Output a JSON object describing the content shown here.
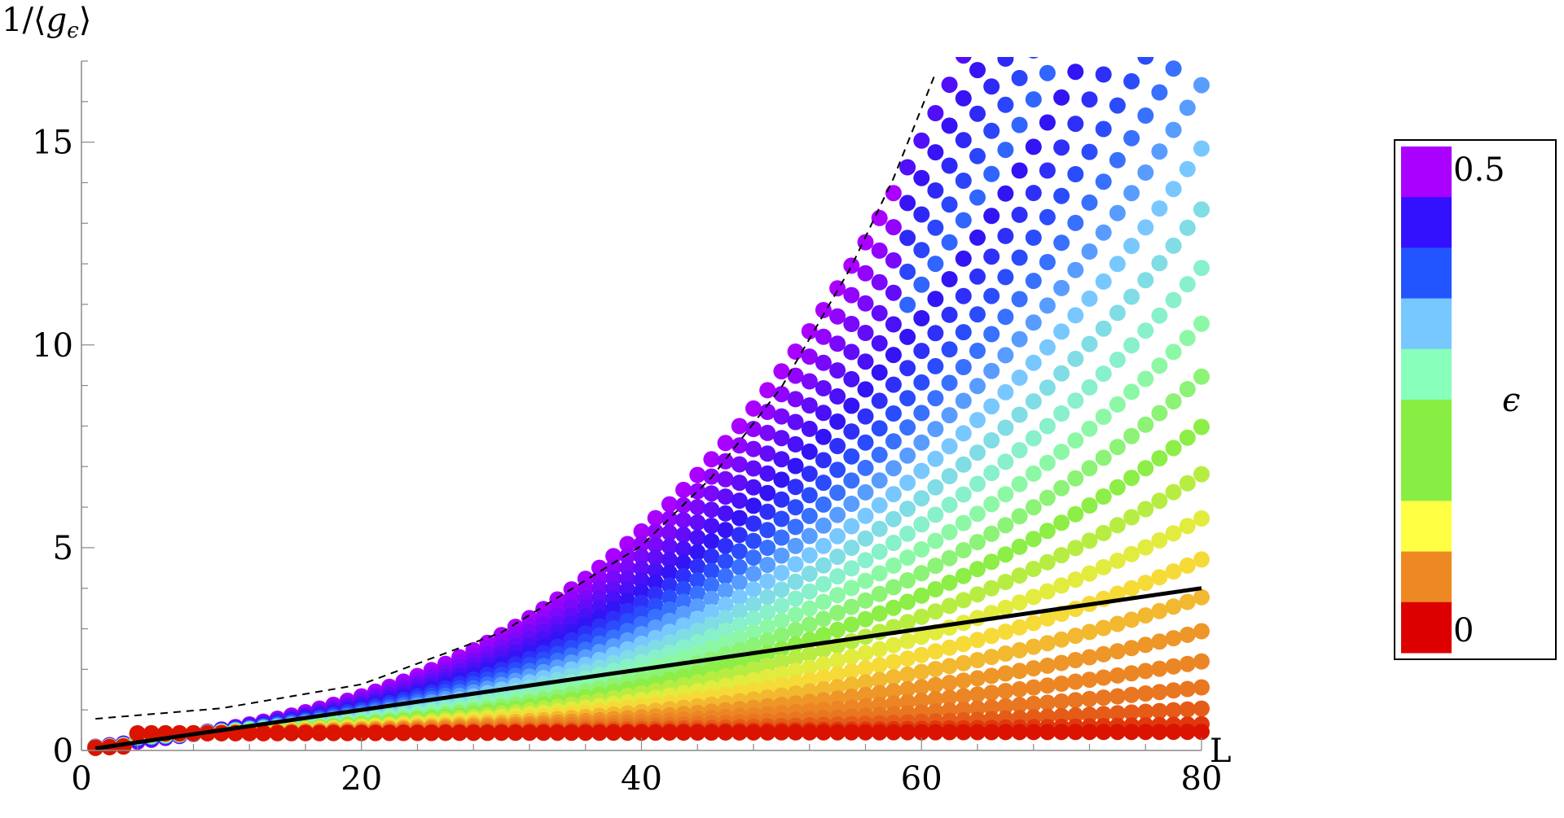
{
  "chart_data": {
    "type": "scatter",
    "title": "",
    "xlabel": "L",
    "ylabel": "1/⟨g_ϵ⟩",
    "ylabel_main": "1/⟨",
    "ylabel_g": "g",
    "ylabel_sub": "ϵ",
    "ylabel_close": "⟩",
    "xlim": [
      0,
      80
    ],
    "ylim": [
      0,
      17
    ],
    "x_ticks": [
      0,
      20,
      40,
      60,
      80
    ],
    "x_tick_labels": [
      "0",
      "20",
      "40",
      "60",
      "80"
    ],
    "y_ticks": [
      0,
      5,
      10,
      15
    ],
    "y_tick_labels": [
      "0",
      "5",
      "10",
      "15"
    ],
    "grid": false,
    "legend": {
      "title": "ϵ",
      "placement": "right",
      "top_label": "0.5",
      "bottom_label": "0",
      "colors": [
        "#aa00ff",
        "#3311ff",
        "#2255ff",
        "#77c8ff",
        "#88ffbb",
        "#88ee44",
        "#88ee44",
        "#ffff44",
        "#ee8822",
        "#dd0000"
      ]
    },
    "line_series": [
      {
        "style": "solid",
        "x": [
          1,
          80
        ],
        "y": [
          0.05,
          4.0
        ],
        "color": "#000000"
      },
      {
        "style": "dashed",
        "x": [
          1,
          10,
          20,
          30,
          40,
          45,
          50,
          55,
          58,
          61
        ],
        "y": [
          0.78,
          1.04,
          1.63,
          2.91,
          5.05,
          6.73,
          8.96,
          11.94,
          14.11,
          16.7
        ],
        "color": "#000000"
      }
    ],
    "epsilon_range": [
      0,
      0.5
    ],
    "series_note": ""
  }
}
